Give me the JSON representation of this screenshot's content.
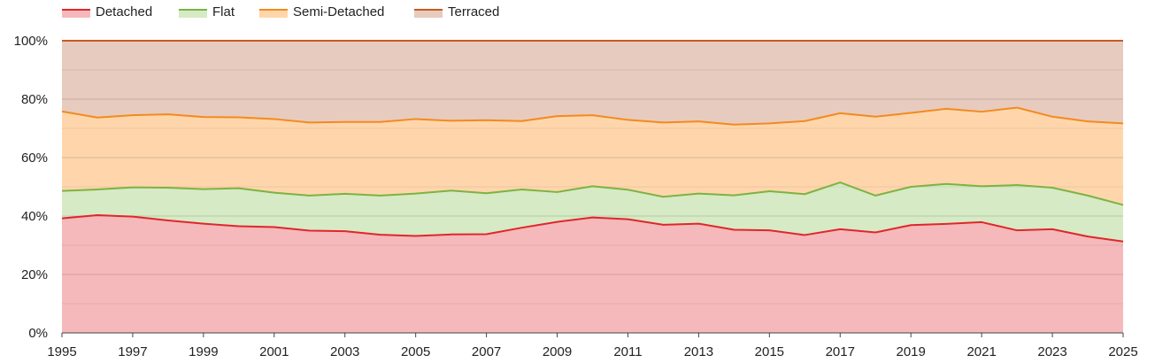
{
  "chart_data": {
    "type": "area",
    "stacked": true,
    "percent": true,
    "title": "",
    "xlabel": "",
    "ylabel": "",
    "x": [
      1995,
      1996,
      1997,
      1998,
      1999,
      2000,
      2001,
      2002,
      2003,
      2004,
      2005,
      2006,
      2007,
      2008,
      2009,
      2010,
      2011,
      2012,
      2013,
      2014,
      2015,
      2016,
      2017,
      2018,
      2019,
      2020,
      2021,
      2022,
      2023,
      2024,
      2025
    ],
    "xlim": [
      1995,
      2025
    ],
    "ylim": [
      0,
      100
    ],
    "x_ticks": [
      "1995",
      "1997",
      "1999",
      "2001",
      "2003",
      "2005",
      "2007",
      "2009",
      "2011",
      "2013",
      "2015",
      "2017",
      "2019",
      "2021",
      "2023",
      "2025"
    ],
    "y_ticks": [
      "0%",
      "20%",
      "40%",
      "60%",
      "80%",
      "100%"
    ],
    "grid": true,
    "legend_position": "top-left",
    "series": [
      {
        "name": "Detached",
        "line_color": "#e0262b",
        "fill_color": "#f5b9bb",
        "values": [
          39.2,
          40.3,
          39.8,
          38.5,
          37.4,
          36.5,
          36.2,
          35.0,
          34.8,
          33.6,
          33.2,
          33.7,
          33.8,
          36.0,
          38.0,
          39.5,
          38.9,
          37.0,
          37.4,
          35.3,
          35.1,
          33.5,
          35.5,
          34.4,
          36.9,
          37.3,
          37.9,
          35.1,
          35.5,
          33.0,
          31.3
        ]
      },
      {
        "name": "Flat",
        "line_color": "#7cb342",
        "fill_color": "#d6eac5",
        "values": [
          9.4,
          8.8,
          10.0,
          11.2,
          11.8,
          13.0,
          11.8,
          12.0,
          12.8,
          13.4,
          14.5,
          15.0,
          14.0,
          13.1,
          10.2,
          10.7,
          10.1,
          9.6,
          10.3,
          11.8,
          13.4,
          14.0,
          16.0,
          12.6,
          13.1,
          13.7,
          12.3,
          15.5,
          14.2,
          14.0,
          12.5
        ]
      },
      {
        "name": "Semi-Detached",
        "line_color": "#f48a1e",
        "fill_color": "#ffd6ac",
        "values": [
          27.2,
          24.6,
          24.7,
          25.1,
          24.7,
          24.3,
          25.2,
          25.0,
          24.6,
          25.2,
          25.5,
          23.9,
          25.0,
          23.4,
          26.0,
          24.3,
          23.9,
          25.4,
          24.7,
          24.2,
          23.2,
          25.0,
          23.7,
          27.0,
          25.3,
          25.7,
          25.5,
          26.5,
          24.3,
          25.4,
          27.9
        ]
      },
      {
        "name": "Terraced",
        "line_color": "#c65a26",
        "fill_color": "#e7cbbe",
        "values": [
          24.2,
          26.3,
          25.5,
          25.2,
          26.1,
          26.2,
          26.8,
          28.0,
          27.8,
          27.8,
          26.8,
          27.4,
          27.2,
          27.5,
          25.8,
          25.5,
          27.1,
          28.0,
          27.6,
          28.7,
          28.3,
          27.5,
          24.8,
          26.0,
          24.7,
          23.3,
          24.3,
          22.9,
          26.0,
          27.6,
          28.3
        ]
      }
    ]
  }
}
